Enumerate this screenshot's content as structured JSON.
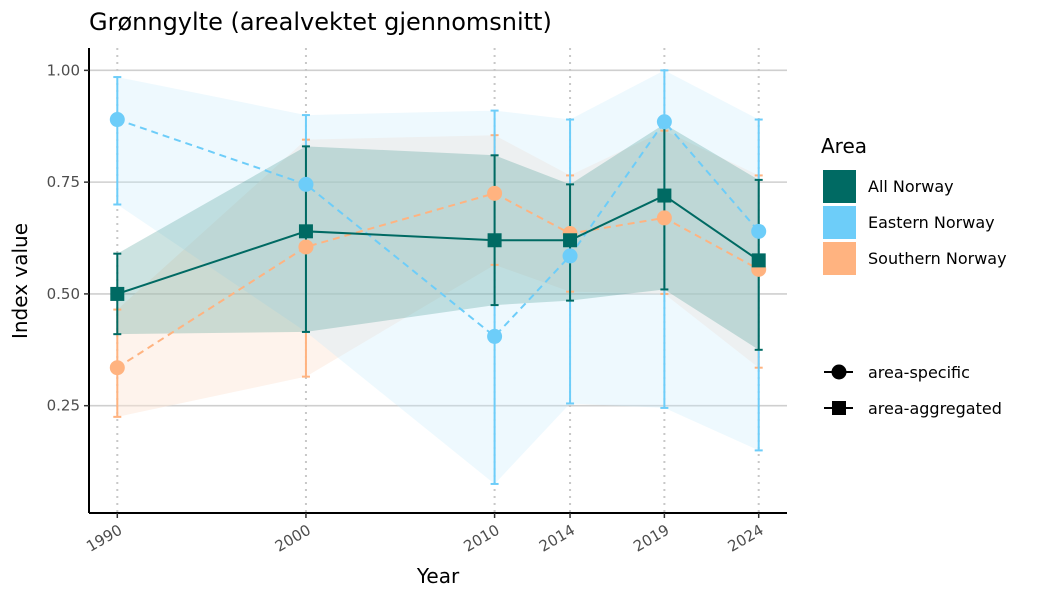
{
  "chart_data": {
    "type": "line",
    "title": "Grønngylte (arealvektet gjennomsnitt)",
    "xlabel": "Year",
    "ylabel": "Index value",
    "x": [
      1990,
      2000,
      2010,
      2014,
      2019,
      2024
    ],
    "x_tick_labels": [
      "1990",
      "2000",
      "2010",
      "2014",
      "2019",
      "2024"
    ],
    "xlim": [
      1988.5,
      2025.5
    ],
    "ylim": [
      0.01,
      1.05
    ],
    "y_ticks": [
      0.25,
      0.5,
      0.75,
      1.0
    ],
    "y_tick_labels": [
      "0.25",
      "0.50",
      "0.75",
      "1.00"
    ],
    "grid": "horizontal major lines; dotted vertical lines at data years",
    "legend_position": "right",
    "series": [
      {
        "name": "All Norway",
        "color": "#006a63",
        "marker": "square",
        "linestyle": "solid",
        "values": [
          0.5,
          0.64,
          0.62,
          0.62,
          0.72,
          0.575
        ],
        "lower": [
          0.41,
          0.415,
          0.475,
          0.485,
          0.51,
          0.375
        ],
        "upper": [
          0.59,
          0.83,
          0.81,
          0.745,
          0.88,
          0.755
        ]
      },
      {
        "name": "Eastern Norway",
        "color": "#6dcdf9",
        "marker": "circle",
        "linestyle": "dashed",
        "values": [
          0.89,
          0.745,
          0.405,
          0.585,
          0.885,
          0.64
        ],
        "lower": [
          0.7,
          0.415,
          0.075,
          0.255,
          0.245,
          0.15
        ],
        "upper": [
          0.985,
          0.9,
          0.91,
          0.89,
          1.0,
          0.89
        ]
      },
      {
        "name": "Southern Norway",
        "color": "#ffb380",
        "marker": "circle",
        "linestyle": "dashed",
        "values": [
          0.335,
          0.605,
          0.725,
          0.635,
          0.67,
          0.555
        ],
        "lower": [
          0.225,
          0.315,
          0.565,
          0.505,
          0.5,
          0.335
        ],
        "upper": [
          0.465,
          0.845,
          0.855,
          0.765,
          0.865,
          0.765
        ]
      }
    ],
    "legend": {
      "title": "Area",
      "areas": [
        "All Norway",
        "Eastern Norway",
        "Southern Norway"
      ],
      "shapes": [
        {
          "label": "area-specific",
          "marker": "circle"
        },
        {
          "label": "area-aggregated",
          "marker": "square"
        }
      ]
    }
  }
}
